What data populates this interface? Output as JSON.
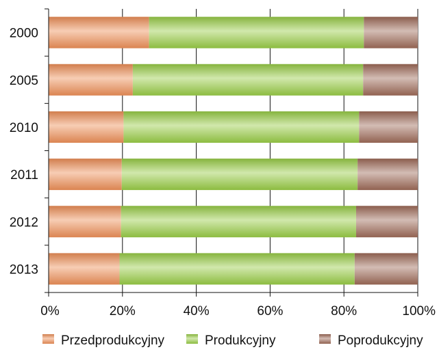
{
  "chart_data": {
    "type": "bar",
    "orientation": "horizontal",
    "stacked": "percent",
    "categories": [
      "2000",
      "2005",
      "2010",
      "2011",
      "2012",
      "2013"
    ],
    "series": [
      {
        "name": "Przedprodukcyjny",
        "color": "#ee8f58",
        "values": [
          27.2,
          22.8,
          20.3,
          19.8,
          19.6,
          19.2
        ]
      },
      {
        "name": "Produkcyjny",
        "color": "#98cc46",
        "values": [
          58.2,
          62.4,
          63.8,
          63.9,
          63.7,
          63.7
        ]
      },
      {
        "name": "Poprodukcyjny",
        "color": "#9e6a58",
        "values": [
          14.6,
          14.8,
          15.9,
          16.3,
          16.7,
          17.1
        ]
      }
    ],
    "x_ticks": [
      "0%",
      "20%",
      "40%",
      "60%",
      "80%",
      "100%"
    ],
    "xlim": [
      0,
      100
    ],
    "title": "",
    "xlabel": "",
    "ylabel": "",
    "grid": "vertical",
    "legend_position": "bottom"
  }
}
